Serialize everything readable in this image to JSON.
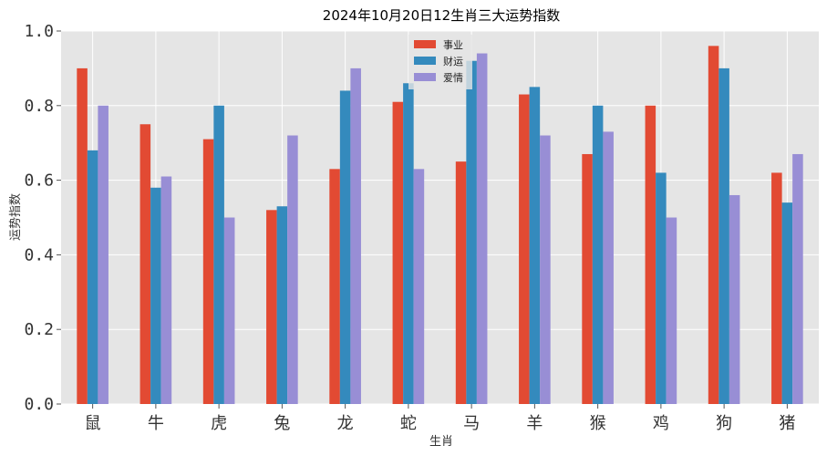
{
  "chart_data": {
    "type": "bar",
    "title": "2024年10月20日12生肖三大运势指数",
    "xlabel": "生肖",
    "ylabel": "运势指数",
    "categories": [
      "鼠",
      "牛",
      "虎",
      "兔",
      "龙",
      "蛇",
      "马",
      "羊",
      "猴",
      "鸡",
      "狗",
      "猪"
    ],
    "series": [
      {
        "name": "事业",
        "color": "#e24a33",
        "values": [
          0.9,
          0.75,
          0.71,
          0.52,
          0.63,
          0.81,
          0.65,
          0.83,
          0.67,
          0.8,
          0.96,
          0.62
        ]
      },
      {
        "name": "财运",
        "color": "#348abd",
        "values": [
          0.68,
          0.58,
          0.8,
          0.53,
          0.84,
          0.86,
          0.92,
          0.85,
          0.8,
          0.62,
          0.9,
          0.54
        ]
      },
      {
        "name": "爱情",
        "color": "#988ed5",
        "values": [
          0.8,
          0.61,
          0.5,
          0.72,
          0.9,
          0.63,
          0.94,
          0.72,
          0.73,
          0.5,
          0.56,
          0.67
        ]
      }
    ],
    "ylim": [
      0,
      1.0
    ],
    "yticks": [
      "0.0",
      "0.2",
      "0.4",
      "0.6",
      "0.8",
      "1.0"
    ],
    "grid": true,
    "legend_position": "top-center",
    "background": "#e5e5e5"
  }
}
